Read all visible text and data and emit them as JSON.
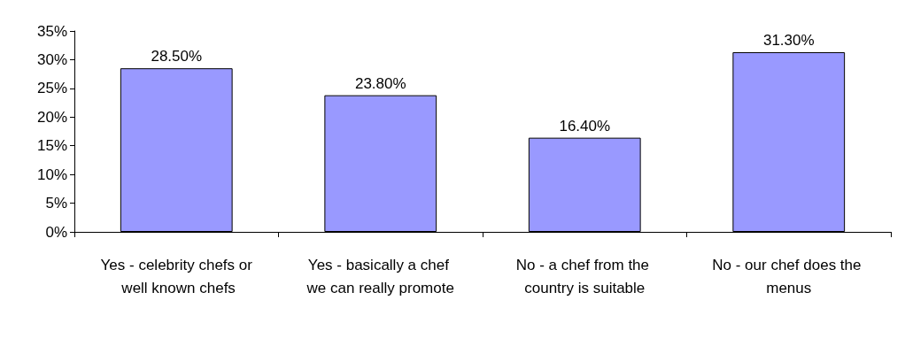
{
  "chart_data": {
    "type": "bar",
    "categories": [
      "Yes - celebrity chefs or well known chefs",
      "Yes - basically a chef we can really promote",
      "No - a chef from the country is suitable",
      "No - our chef does the menus"
    ],
    "values": [
      28.5,
      23.8,
      16.4,
      31.3
    ],
    "value_labels": [
      "28.50%",
      "23.80%",
      "16.40%",
      "31.30%"
    ],
    "color": "#9999ff",
    "ylim": [
      0,
      35
    ],
    "yticks": [
      {
        "value": 0,
        "label": "0%"
      },
      {
        "value": 5,
        "label": "5%"
      },
      {
        "value": 10,
        "label": "10%"
      },
      {
        "value": 15,
        "label": "15%"
      },
      {
        "value": 20,
        "label": "20%"
      },
      {
        "value": 25,
        "label": "25%"
      },
      {
        "value": 30,
        "label": "30%"
      },
      {
        "value": 35,
        "label": "35%"
      }
    ],
    "grid": false
  }
}
